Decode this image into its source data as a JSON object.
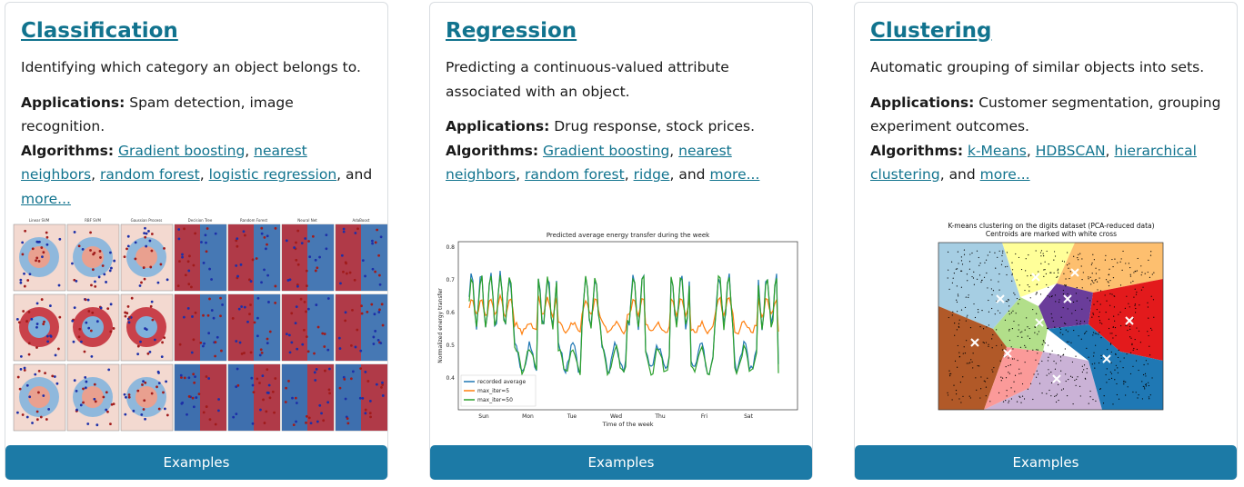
{
  "cards": [
    {
      "title": "Classification",
      "description": "Identifying which category an object belongs to.",
      "applications_label": "Applications:",
      "applications": "Spam detection, image recognition.",
      "algorithms_label": "Algorithms:",
      "algorithms": [
        "Gradient boosting",
        "nearest neighbors",
        "random forest",
        "logistic regression"
      ],
      "separator": ",",
      "conjunction": "and",
      "more": "more...",
      "button": "Examples",
      "figure": {
        "panel_titles": [
          "Linear SVM",
          "RBF SVM",
          "Gaussian Process",
          "Decision Tree",
          "Random Forest",
          "Neural Net",
          "AdaBoost"
        ]
      }
    },
    {
      "title": "Regression",
      "description": "Predicting a continuous-valued attribute associated with an object.",
      "applications_label": "Applications:",
      "applications": "Drug response, stock prices.",
      "algorithms_label": "Algorithms:",
      "algorithms": [
        "Gradient boosting",
        "nearest neighbors",
        "random forest",
        "ridge"
      ],
      "separator": ",",
      "conjunction": "and",
      "more": "more...",
      "button": "Examples",
      "figure": {
        "title": "Predicted average energy transfer during the week",
        "ylabel": "Normalized energy transfer",
        "xlabel": "Time of the week",
        "days": [
          "Sun",
          "Mon",
          "Tue",
          "Wed",
          "Thu",
          "Fri",
          "Sat"
        ],
        "yticks": [
          "0.8",
          "0.7",
          "0.6",
          "0.5",
          "0.4"
        ],
        "legend": [
          "recorded average",
          "max_iter=5",
          "max_iter=50"
        ]
      }
    },
    {
      "title": "Clustering",
      "description": "Automatic grouping of similar objects into sets.",
      "applications_label": "Applications:",
      "applications": "Customer segmentation, grouping experiment outcomes.",
      "algorithms_label": "Algorithms:",
      "algorithms": [
        "k-Means",
        "HDBSCAN",
        "hierarchical clustering"
      ],
      "separator": ",",
      "conjunction": "and",
      "more": "more...",
      "button": "Examples",
      "figure": {
        "title": [
          "K-means clustering on the digits dataset (PCA-reduced data)",
          "Centroids are marked with white cross"
        ]
      }
    }
  ]
}
